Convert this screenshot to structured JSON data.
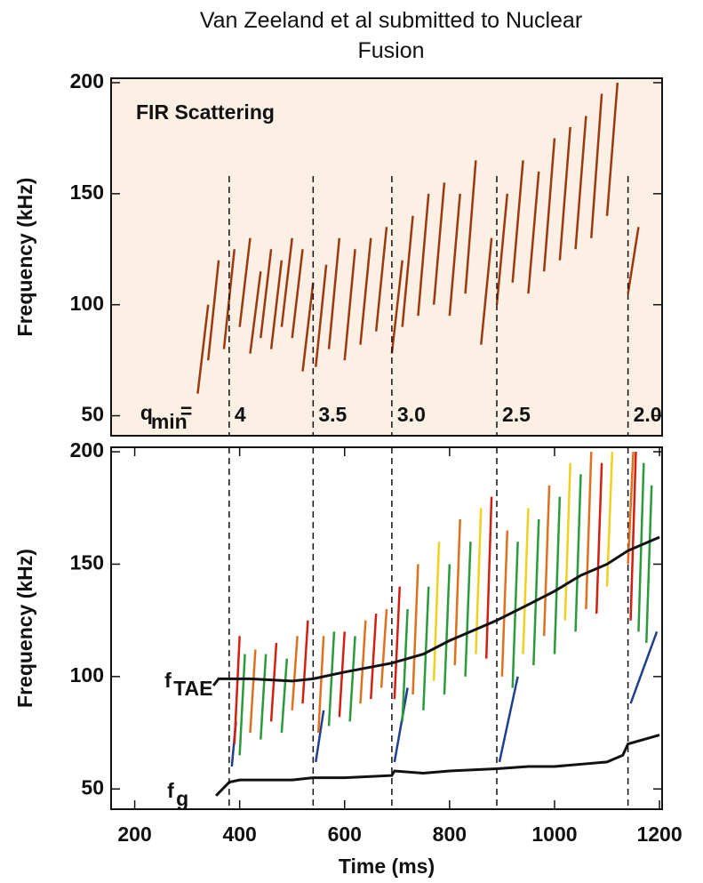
{
  "title": "Van Zeeland et al submitted to Nuclear Fusion",
  "chart_data": [
    {
      "type": "spectrogram",
      "annotation": "FIR Scattering",
      "ylabel": "Frequency (kHz)",
      "xlim": [
        155,
        1205
      ],
      "ylim": [
        41,
        202
      ],
      "yticks": [
        50,
        100,
        150,
        200
      ],
      "background": "#fcefe3",
      "color": "#9a3a10",
      "q_label": {
        "base": "q",
        "sub": "min",
        "sign": "="
      },
      "markers": {
        "x": [
          380,
          540,
          690,
          890,
          1140
        ],
        "labels": [
          "4",
          "3.5",
          "3.0",
          "2.5",
          "2.0"
        ]
      },
      "chirps": [
        {
          "x": [
            320,
            340
          ],
          "values": [
            60,
            100
          ]
        },
        {
          "x": [
            340,
            360
          ],
          "values": [
            75,
            120
          ]
        },
        {
          "x": [
            370,
            390
          ],
          "values": [
            80,
            125
          ]
        },
        {
          "x": [
            400,
            420
          ],
          "values": [
            90,
            130
          ]
        },
        {
          "x": [
            420,
            440
          ],
          "values": [
            78,
            115
          ]
        },
        {
          "x": [
            440,
            460
          ],
          "values": [
            85,
            125
          ]
        },
        {
          "x": [
            460,
            480
          ],
          "values": [
            80,
            120
          ]
        },
        {
          "x": [
            480,
            500
          ],
          "values": [
            90,
            130
          ]
        },
        {
          "x": [
            500,
            520
          ],
          "values": [
            85,
            125
          ]
        },
        {
          "x": [
            520,
            540
          ],
          "values": [
            70,
            110
          ]
        },
        {
          "x": [
            545,
            565
          ],
          "values": [
            72,
            118
          ]
        },
        {
          "x": [
            570,
            590
          ],
          "values": [
            80,
            130
          ]
        },
        {
          "x": [
            600,
            620
          ],
          "values": [
            75,
            125
          ]
        },
        {
          "x": [
            630,
            650
          ],
          "values": [
            82,
            130
          ]
        },
        {
          "x": [
            660,
            680
          ],
          "values": [
            88,
            135
          ]
        },
        {
          "x": [
            690,
            710
          ],
          "values": [
            78,
            120
          ]
        },
        {
          "x": [
            710,
            730
          ],
          "values": [
            90,
            140
          ]
        },
        {
          "x": [
            740,
            760
          ],
          "values": [
            95,
            150
          ]
        },
        {
          "x": [
            770,
            790
          ],
          "values": [
            100,
            155
          ]
        },
        {
          "x": [
            800,
            820
          ],
          "values": [
            95,
            150
          ]
        },
        {
          "x": [
            830,
            850
          ],
          "values": [
            105,
            165
          ]
        },
        {
          "x": [
            860,
            880
          ],
          "values": [
            82,
            130
          ]
        },
        {
          "x": [
            890,
            910
          ],
          "values": [
            100,
            150
          ]
        },
        {
          "x": [
            920,
            940
          ],
          "values": [
            110,
            165
          ]
        },
        {
          "x": [
            950,
            970
          ],
          "values": [
            105,
            160
          ]
        },
        {
          "x": [
            980,
            1000
          ],
          "values": [
            115,
            175
          ]
        },
        {
          "x": [
            1010,
            1030
          ],
          "values": [
            120,
            180
          ]
        },
        {
          "x": [
            1040,
            1060
          ],
          "values": [
            125,
            185
          ]
        },
        {
          "x": [
            1070,
            1090
          ],
          "values": [
            130,
            195
          ]
        },
        {
          "x": [
            1100,
            1120
          ],
          "values": [
            140,
            200
          ]
        },
        {
          "x": [
            1140,
            1160
          ],
          "values": [
            105,
            135
          ]
        }
      ]
    },
    {
      "type": "line",
      "ylabel": "Frequency (kHz)",
      "xlabel": "Time (ms)",
      "xlim": [
        155,
        1205
      ],
      "ylim": [
        41,
        202
      ],
      "yticks": [
        50,
        100,
        150,
        200
      ],
      "xticks": [
        200,
        400,
        600,
        800,
        1000,
        1200
      ],
      "vlines": [
        380,
        540,
        690,
        890,
        1140
      ],
      "series": [
        {
          "name": "f",
          "subscript": "TAE",
          "color": "#111111",
          "x": [
            350,
            360,
            380,
            420,
            500,
            540,
            600,
            690,
            750,
            800,
            890,
            950,
            1000,
            1050,
            1100,
            1140,
            1180,
            1200
          ],
          "values": [
            96,
            99,
            99,
            99,
            98,
            99,
            102,
            106,
            110,
            116,
            125,
            132,
            138,
            145,
            150,
            156,
            160,
            162
          ]
        },
        {
          "name": "f",
          "subscript": "g",
          "color": "#111111",
          "x": [
            355,
            380,
            400,
            450,
            500,
            540,
            600,
            690,
            695,
            750,
            800,
            890,
            950,
            1000,
            1050,
            1100,
            1130,
            1140,
            1200
          ],
          "values": [
            47,
            53,
            54,
            54,
            54,
            55,
            55,
            56,
            58,
            57,
            58,
            59,
            60,
            60,
            61,
            62,
            65,
            70,
            74
          ]
        }
      ],
      "chirps": [
        {
          "color": "#1f3f8f",
          "x": [
            385,
            393
          ],
          "values": [
            60,
            80
          ]
        },
        {
          "color": "#d02010",
          "x": [
            390,
            400
          ],
          "values": [
            70,
            118
          ]
        },
        {
          "color": "#2a9a3a",
          "x": [
            400,
            410
          ],
          "values": [
            65,
            110
          ]
        },
        {
          "color": "#e07020",
          "x": [
            420,
            430
          ],
          "values": [
            75,
            112
          ]
        },
        {
          "color": "#2a9a3a",
          "x": [
            440,
            450
          ],
          "values": [
            72,
            110
          ]
        },
        {
          "color": "#d02010",
          "x": [
            460,
            470
          ],
          "values": [
            80,
            115
          ]
        },
        {
          "color": "#2a9a3a",
          "x": [
            480,
            490
          ],
          "values": [
            75,
            108
          ]
        },
        {
          "color": "#e07020",
          "x": [
            500,
            510
          ],
          "values": [
            85,
            118
          ]
        },
        {
          "color": "#d02010",
          "x": [
            520,
            530
          ],
          "values": [
            88,
            125
          ]
        },
        {
          "color": "#1f3f8f",
          "x": [
            545,
            560
          ],
          "values": [
            62,
            85
          ]
        },
        {
          "color": "#e07020",
          "x": [
            550,
            560
          ],
          "values": [
            75,
            118
          ]
        },
        {
          "color": "#2a9a3a",
          "x": [
            570,
            580
          ],
          "values": [
            78,
            120
          ]
        },
        {
          "color": "#d02010",
          "x": [
            590,
            600
          ],
          "values": [
            82,
            120
          ]
        },
        {
          "color": "#2a9a3a",
          "x": [
            610,
            620
          ],
          "values": [
            80,
            118
          ]
        },
        {
          "color": "#e07020",
          "x": [
            630,
            640
          ],
          "values": [
            88,
            125
          ]
        },
        {
          "color": "#d02010",
          "x": [
            650,
            660
          ],
          "values": [
            90,
            128
          ]
        },
        {
          "color": "#e07020",
          "x": [
            670,
            680
          ],
          "values": [
            95,
            130
          ]
        },
        {
          "color": "#1f3f8f",
          "x": [
            695,
            720
          ],
          "values": [
            62,
            95
          ]
        },
        {
          "color": "#d02010",
          "x": [
            695,
            705
          ],
          "values": [
            90,
            140
          ]
        },
        {
          "color": "#2a9a3a",
          "x": [
            710,
            720
          ],
          "values": [
            80,
            130
          ]
        },
        {
          "color": "#e07020",
          "x": [
            730,
            740
          ],
          "values": [
            92,
            150
          ]
        },
        {
          "color": "#2a9a3a",
          "x": [
            750,
            760
          ],
          "values": [
            85,
            140
          ]
        },
        {
          "color": "#f0d020",
          "x": [
            770,
            780
          ],
          "values": [
            98,
            160
          ]
        },
        {
          "color": "#2a9a3a",
          "x": [
            790,
            800
          ],
          "values": [
            92,
            150
          ]
        },
        {
          "color": "#e07020",
          "x": [
            810,
            820
          ],
          "values": [
            105,
            170
          ]
        },
        {
          "color": "#2a9a3a",
          "x": [
            830,
            840
          ],
          "values": [
            100,
            160
          ]
        },
        {
          "color": "#f0d020",
          "x": [
            850,
            860
          ],
          "values": [
            110,
            175
          ]
        },
        {
          "color": "#d02010",
          "x": [
            870,
            880
          ],
          "values": [
            108,
            180
          ]
        },
        {
          "color": "#1f3f8f",
          "x": [
            895,
            930
          ],
          "values": [
            62,
            100
          ]
        },
        {
          "color": "#e07020",
          "x": [
            900,
            910
          ],
          "values": [
            100,
            165
          ]
        },
        {
          "color": "#2a9a3a",
          "x": [
            920,
            930
          ],
          "values": [
            95,
            160
          ]
        },
        {
          "color": "#f0d020",
          "x": [
            940,
            950
          ],
          "values": [
            110,
            175
          ]
        },
        {
          "color": "#2a9a3a",
          "x": [
            960,
            970
          ],
          "values": [
            105,
            170
          ]
        },
        {
          "color": "#e07020",
          "x": [
            980,
            990
          ],
          "values": [
            118,
            185
          ]
        },
        {
          "color": "#2a9a3a",
          "x": [
            1000,
            1010
          ],
          "values": [
            110,
            180
          ]
        },
        {
          "color": "#f0d020",
          "x": [
            1020,
            1030
          ],
          "values": [
            125,
            195
          ]
        },
        {
          "color": "#2a9a3a",
          "x": [
            1040,
            1050
          ],
          "values": [
            120,
            190
          ]
        },
        {
          "color": "#e07020",
          "x": [
            1060,
            1070
          ],
          "values": [
            130,
            200
          ]
        },
        {
          "color": "#d02010",
          "x": [
            1080,
            1090
          ],
          "values": [
            128,
            195
          ]
        },
        {
          "color": "#f0d020",
          "x": [
            1100,
            1110
          ],
          "values": [
            140,
            200
          ]
        },
        {
          "color": "#1f3f8f",
          "x": [
            1145,
            1195
          ],
          "values": [
            88,
            120
          ]
        },
        {
          "color": "#d02010",
          "x": [
            1145,
            1155
          ],
          "values": [
            125,
            200
          ]
        },
        {
          "color": "#2a9a3a",
          "x": [
            1160,
            1170
          ],
          "values": [
            120,
            195
          ]
        },
        {
          "color": "#2a9a3a",
          "x": [
            1175,
            1185
          ],
          "values": [
            115,
            185
          ]
        },
        {
          "color": "#e07020",
          "x": [
            1140,
            1150
          ],
          "values": [
            150,
            200
          ]
        }
      ]
    }
  ]
}
